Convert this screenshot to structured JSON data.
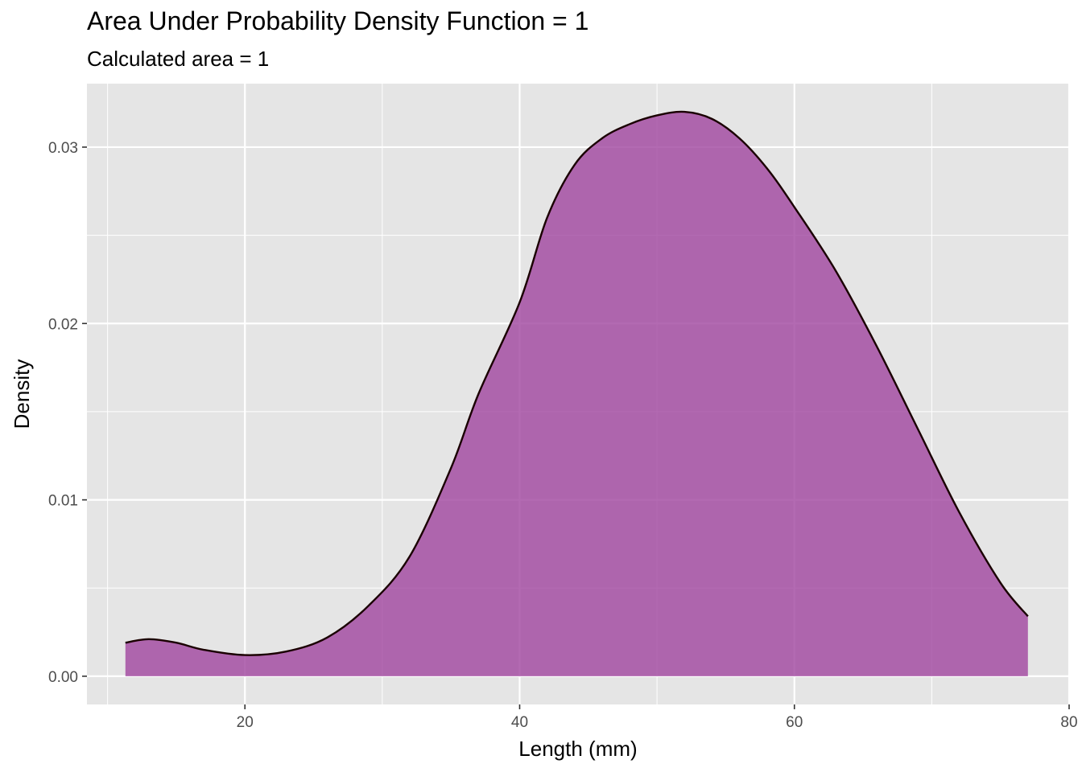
{
  "chart_data": {
    "type": "area",
    "title": "Area Under Probability Density Function = 1",
    "subtitle": "Calculated area = 1",
    "xlabel": "Length (mm)",
    "ylabel": "Density",
    "xlim": [
      8.5,
      80
    ],
    "ylim": [
      -0.0016,
      0.0336
    ],
    "x_ticks": [
      20,
      40,
      60,
      80
    ],
    "x_tick_labels": [
      "20",
      "40",
      "60",
      "80"
    ],
    "y_ticks": [
      0.0,
      0.01,
      0.02,
      0.03
    ],
    "y_tick_labels": [
      "0.00",
      "0.01",
      "0.02",
      "0.03"
    ],
    "grid": true,
    "fill_color": "#a0459f",
    "line_color": "#1a0000",
    "panel_color": "#e5e5e5",
    "series": [
      {
        "x": [
          11.3,
          13,
          15,
          17,
          20,
          23,
          26,
          29,
          32,
          35,
          37,
          40,
          42,
          44,
          46,
          48,
          50,
          52,
          54,
          56,
          58,
          60,
          63,
          66,
          69,
          72,
          75,
          77
        ],
        "y": [
          0.0019,
          0.0021,
          0.0019,
          0.0015,
          0.0012,
          0.0014,
          0.0022,
          0.004,
          0.0068,
          0.0118,
          0.016,
          0.0212,
          0.026,
          0.029,
          0.0305,
          0.0313,
          0.0318,
          0.032,
          0.0316,
          0.0305,
          0.0288,
          0.0266,
          0.023,
          0.0187,
          0.014,
          0.0093,
          0.0053,
          0.0034
        ]
      }
    ]
  }
}
